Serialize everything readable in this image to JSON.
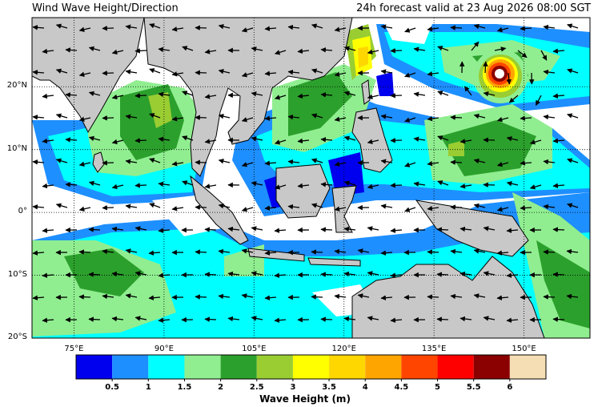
{
  "header": {
    "title": "Wind Wave Height/Direction",
    "valid": "24h forecast valid at 23 Aug 2026 08:00 SGT"
  },
  "axes": {
    "lon_range": [
      68,
      161
    ],
    "lat_range": [
      -20,
      31
    ],
    "lon_ticks": [
      {
        "lon": 75,
        "label": "75°E"
      },
      {
        "lon": 90,
        "label": "90°E"
      },
      {
        "lon": 105,
        "label": "105°E"
      },
      {
        "lon": 120,
        "label": "120°E"
      },
      {
        "lon": 135,
        "label": "135°E"
      },
      {
        "lon": 150,
        "label": "150°E"
      }
    ],
    "lat_ticks": [
      {
        "lat": 20,
        "label": "20°N"
      },
      {
        "lat": 10,
        "label": "10°N"
      },
      {
        "lat": 0,
        "label": "0°"
      },
      {
        "lat": -10,
        "label": "10°S"
      },
      {
        "lat": -20,
        "label": "20°S"
      }
    ],
    "grid": "dotted"
  },
  "colorbar": {
    "title": "Wave Height (m)",
    "colors": [
      "#0000ee",
      "#1e8fff",
      "#00ffff",
      "#90ee90",
      "#2ca02c",
      "#9acd32",
      "#ffff00",
      "#ffd700",
      "#ffa500",
      "#ff4500",
      "#ff0000",
      "#8b0000",
      "#f5deb3"
    ],
    "ticks": [
      "0.5",
      "1",
      "1.5",
      "2",
      "2.5",
      "3",
      "3.5",
      "4",
      "4.5",
      "5",
      "5.5",
      "6"
    ]
  },
  "colors": {
    "land": "#c8c8c8",
    "sea_calm": "#ffffff",
    "coast": "#000000"
  }
}
